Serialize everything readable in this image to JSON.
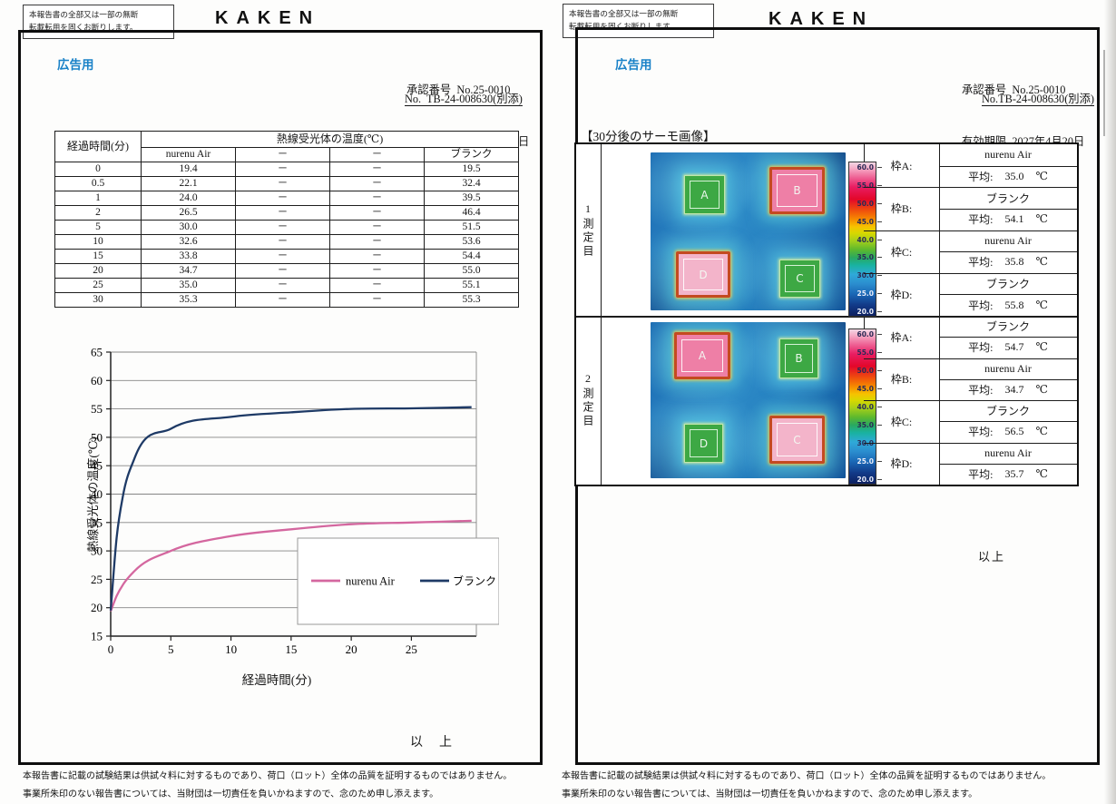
{
  "colors": {
    "accent_blue": "#1a82c8",
    "series_pink": "#d4679f",
    "series_navy": "#1e3a66"
  },
  "shared": {
    "notice_line1": "本報告書の全部又は一部の無断",
    "notice_line2": "転載転用を固くお断りします。",
    "brand": "KAKEN",
    "ad_label": "広告用",
    "approval": "承認番号  No.25-0010",
    "expiry": "有効期限  2027年4月20日",
    "footer_line1": "本報告書に記載の試験結果は供試々料に対するものであり、荷口（ロット）全体の品質を証明するものではありません。",
    "footer_line2": "事業所朱印のない報告書については、当財団は一切責任を負いかねますので、念のため申し添えます。"
  },
  "page_left": {
    "doc_no": "No.  TB-24-008630(別添)",
    "closing": "以　上",
    "table": {
      "col0_header": "経過時間(分)",
      "span_header": "熱線受光体の温度(℃)",
      "sub_headers": [
        "nurenu Air",
        "－",
        "－",
        "ブランク"
      ],
      "rows": [
        [
          "0",
          "19.4",
          "－",
          "－",
          "19.5"
        ],
        [
          "0.5",
          "22.1",
          "－",
          "－",
          "32.4"
        ],
        [
          "1",
          "24.0",
          "－",
          "－",
          "39.5"
        ],
        [
          "2",
          "26.5",
          "－",
          "－",
          "46.4"
        ],
        [
          "5",
          "30.0",
          "－",
          "－",
          "51.5"
        ],
        [
          "10",
          "32.6",
          "－",
          "－",
          "53.6"
        ],
        [
          "15",
          "33.8",
          "－",
          "－",
          "54.4"
        ],
        [
          "20",
          "34.7",
          "－",
          "－",
          "55.0"
        ],
        [
          "25",
          "35.0",
          "－",
          "－",
          "55.1"
        ],
        [
          "30",
          "35.3",
          "－",
          "－",
          "55.3"
        ]
      ]
    }
  },
  "page_right": {
    "doc_no": "No.TB-24-008630(別添)",
    "section_title": "【30分後のサーモ画像】",
    "closing": "以上",
    "thermo": {
      "avg_label": "平均:",
      "unit": "℃",
      "scale_labels": [
        "60.0",
        "55.0",
        "50.0",
        "45.0",
        "40.0",
        "35.0",
        "30.0",
        "25.0",
        "20.0"
      ],
      "measurements": [
        {
          "row_label": "1測定目",
          "squares": [
            {
              "id": "A",
              "pos": "tl",
              "appearance": "cool"
            },
            {
              "id": "B",
              "pos": "tr",
              "appearance": "hot",
              "shade": "deep"
            },
            {
              "id": "D",
              "pos": "bl",
              "appearance": "hot",
              "shade": "light"
            },
            {
              "id": "C",
              "pos": "br",
              "appearance": "cool"
            }
          ],
          "frames": [
            {
              "label": "枠A:",
              "sample": "nurenu Air",
              "value": "35.0"
            },
            {
              "label": "枠B:",
              "sample": "ブランク",
              "value": "54.1"
            },
            {
              "label": "枠C:",
              "sample": "nurenu Air",
              "value": "35.8"
            },
            {
              "label": "枠D:",
              "sample": "ブランク",
              "value": "55.8"
            }
          ]
        },
        {
          "row_label": "2測定目",
          "squares": [
            {
              "id": "A",
              "pos": "tl",
              "appearance": "hot",
              "shade": "deep"
            },
            {
              "id": "B",
              "pos": "tr",
              "appearance": "cool"
            },
            {
              "id": "D",
              "pos": "bl",
              "appearance": "cool"
            },
            {
              "id": "C",
              "pos": "br",
              "appearance": "hot",
              "shade": "light"
            }
          ],
          "frames": [
            {
              "label": "枠A:",
              "sample": "ブランク",
              "value": "54.7"
            },
            {
              "label": "枠B:",
              "sample": "nurenu Air",
              "value": "34.7"
            },
            {
              "label": "枠C:",
              "sample": "ブランク",
              "value": "56.5"
            },
            {
              "label": "枠D:",
              "sample": "nurenu Air",
              "value": "35.7"
            }
          ]
        }
      ]
    }
  },
  "chart_data": {
    "type": "line",
    "x": [
      0,
      0.5,
      1,
      2,
      5,
      10,
      15,
      20,
      25,
      30
    ],
    "series": [
      {
        "name": "nurenu Air",
        "color": "#d4679f",
        "values": [
          19.4,
          22.1,
          24.0,
          26.5,
          30.0,
          32.6,
          33.8,
          34.7,
          35.0,
          35.3
        ]
      },
      {
        "name": "ブランク",
        "color": "#1e3a66",
        "values": [
          19.5,
          32.4,
          39.5,
          46.4,
          51.5,
          53.6,
          54.4,
          55.0,
          55.1,
          55.3
        ]
      }
    ],
    "title": "",
    "xlabel": "経過時間(分)",
    "ylabel": "熱線受光体の温度(℃)",
    "xlim": [
      0,
      30.4
    ],
    "ylim": [
      15,
      65
    ],
    "xticks": [
      0,
      5,
      10,
      15,
      20,
      25
    ],
    "yticks": [
      15,
      20,
      25,
      30,
      35,
      40,
      45,
      50,
      55,
      60,
      65
    ],
    "grid": "horizontal",
    "legend_position": "inside-bottom-right"
  }
}
